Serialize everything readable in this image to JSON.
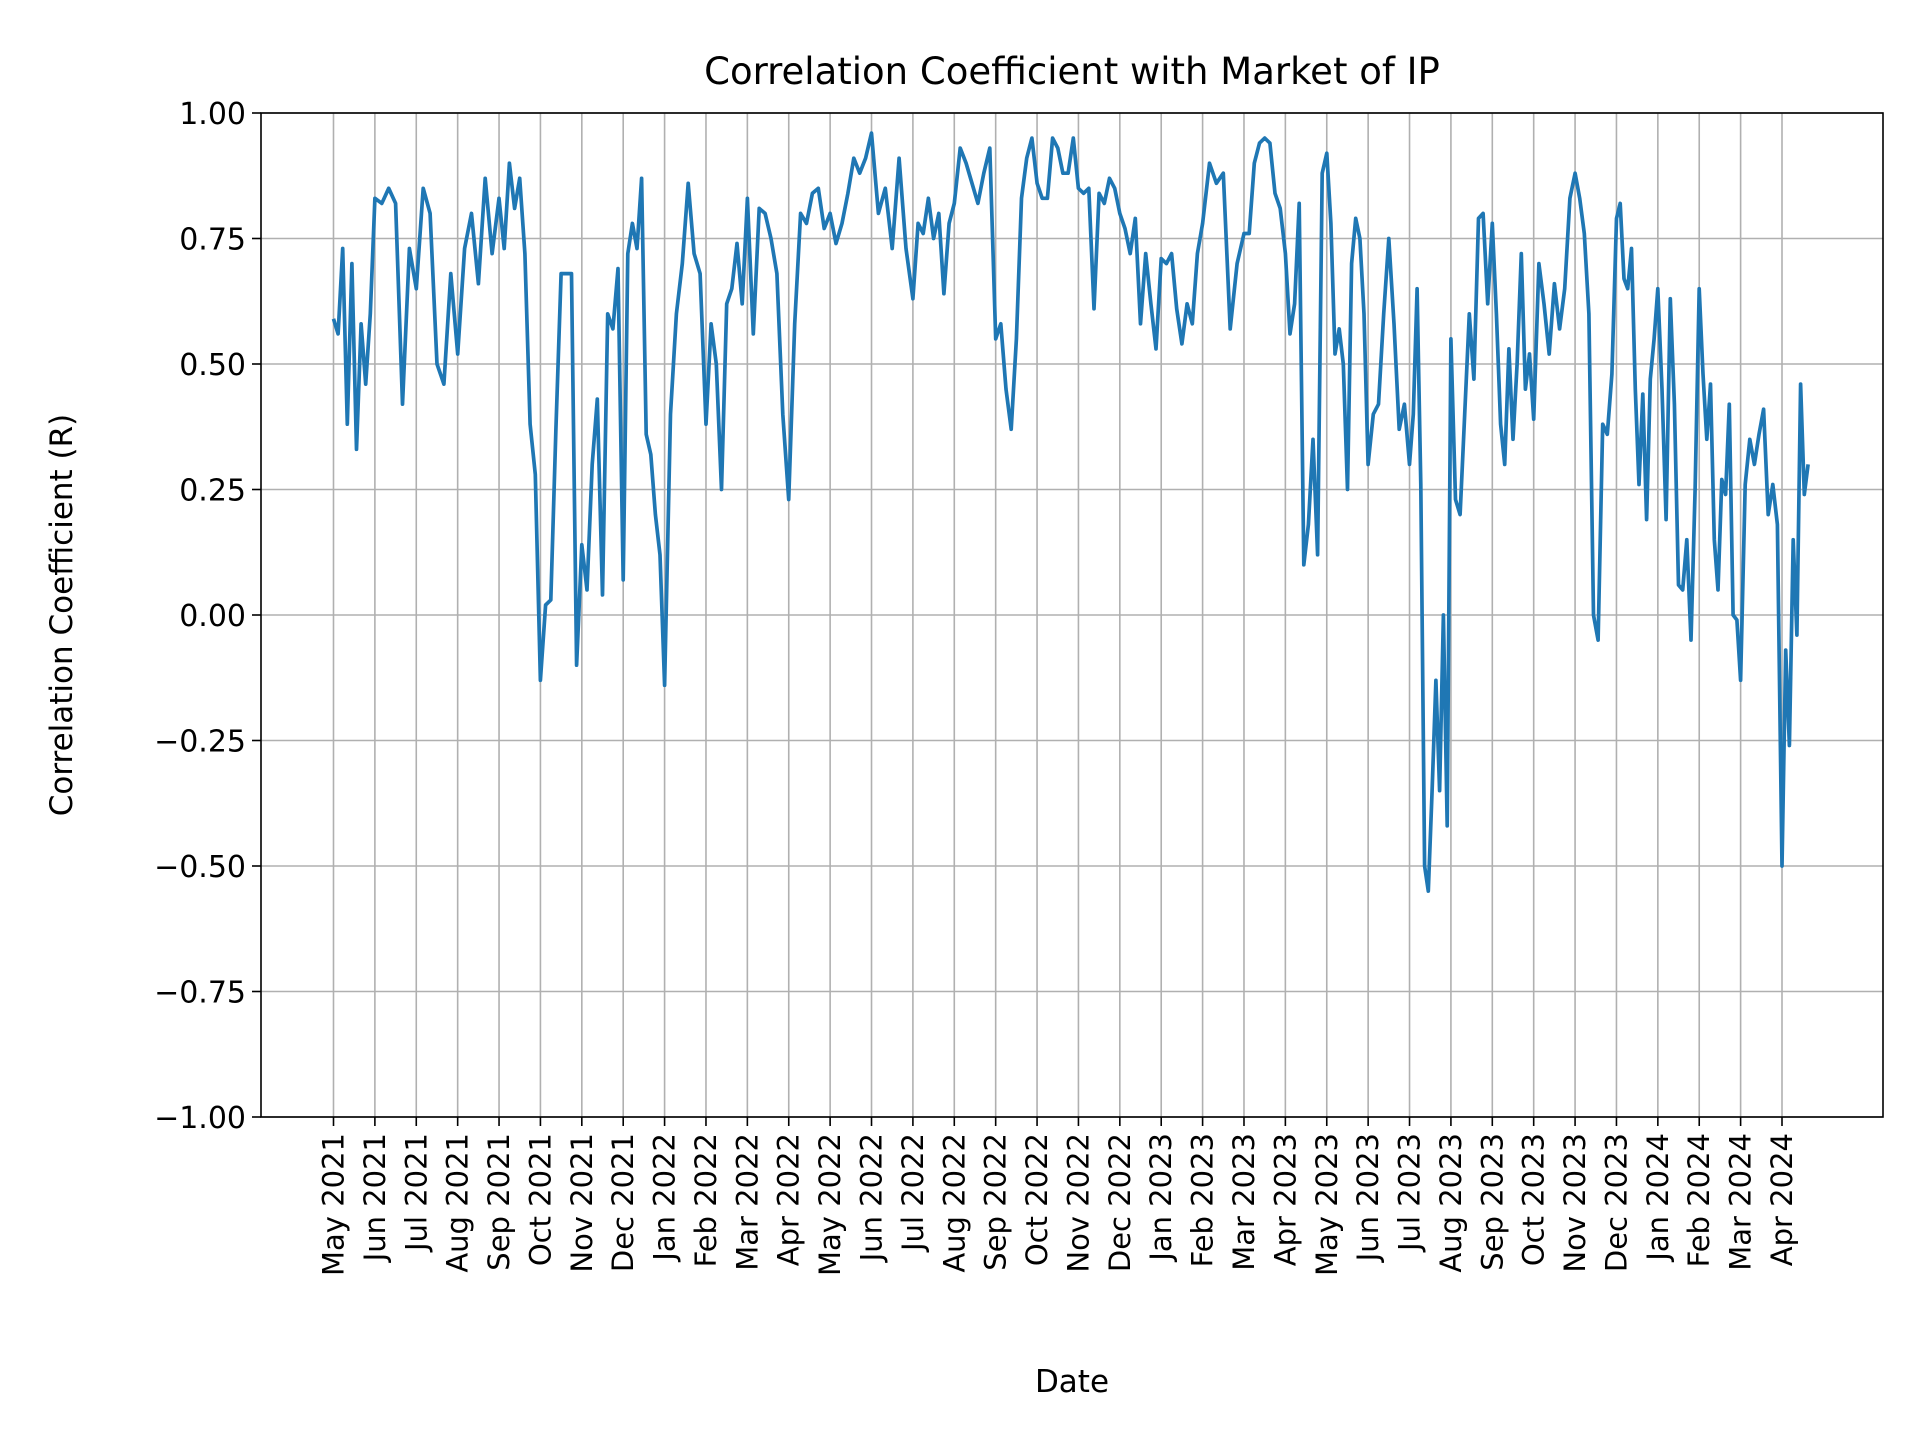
{
  "chart_data": {
    "type": "line",
    "title": "Correlation Coefficient with Market of IP",
    "xlabel": "Date",
    "ylabel": "Correlation Coefficient (R)",
    "ylim": [
      -1.0,
      1.0
    ],
    "yticks": [
      "1.00",
      "0.75",
      "0.50",
      "0.25",
      "0.00",
      "−0.25",
      "−0.50",
      "−0.75",
      "−1.00"
    ],
    "ytick_values": [
      1.0,
      0.75,
      0.5,
      0.25,
      0.0,
      -0.25,
      -0.5,
      -0.75,
      -1.0
    ],
    "grid": true,
    "line_color": "#1f77b4",
    "grid_color": "#b0b0b0",
    "xticks": [
      "May 2021",
      "Jun 2021",
      "Jul 2021",
      "Aug 2021",
      "Sep 2021",
      "Oct 2021",
      "Nov 2021",
      "Dec 2021",
      "Jan 2022",
      "Feb 2022",
      "Mar 2022",
      "Apr 2022",
      "May 2022",
      "Jun 2022",
      "Jul 2022",
      "Aug 2022",
      "Sep 2022",
      "Oct 2022",
      "Nov 2022",
      "Dec 2022",
      "Jan 2023",
      "Feb 2023",
      "Mar 2023",
      "Apr 2023",
      "May 2023",
      "Jun 2023",
      "Jul 2023",
      "Aug 2023",
      "Sep 2023",
      "Oct 2023",
      "Nov 2023",
      "Dec 2023",
      "Jan 2024",
      "Feb 2024",
      "Mar 2024",
      "Apr 2024"
    ],
    "series_by_month": [
      {
        "month": "2021-05",
        "values": [
          0.59,
          0.56,
          0.73,
          0.38,
          0.7,
          0.33,
          0.58,
          0.46,
          0.6
        ]
      },
      {
        "month": "2021-06",
        "values": [
          0.83,
          0.82,
          0.85,
          0.82,
          0.42,
          0.73
        ]
      },
      {
        "month": "2021-07",
        "values": [
          0.65,
          0.85,
          0.8,
          0.5,
          0.46,
          0.68
        ]
      },
      {
        "month": "2021-08",
        "values": [
          0.52,
          0.73,
          0.8,
          0.66,
          0.87,
          0.72
        ]
      },
      {
        "month": "2021-09",
        "values": [
          0.83,
          0.73,
          0.9,
          0.81,
          0.87,
          0.72,
          0.38,
          0.28
        ]
      },
      {
        "month": "2021-10",
        "values": [
          -0.13,
          0.02,
          0.03,
          0.37,
          0.68,
          0.68,
          0.68,
          -0.1
        ]
      },
      {
        "month": "2021-11",
        "values": [
          0.14,
          0.05,
          0.3,
          0.43,
          0.04,
          0.6,
          0.57,
          0.69
        ]
      },
      {
        "month": "2021-12",
        "values": [
          0.07,
          0.72,
          0.78,
          0.73,
          0.87,
          0.36,
          0.32,
          0.2,
          0.12
        ]
      },
      {
        "month": "2022-01",
        "values": [
          -0.14,
          0.4,
          0.6,
          0.7,
          0.86,
          0.72,
          0.68
        ]
      },
      {
        "month": "2022-02",
        "values": [
          0.38,
          0.58,
          0.5,
          0.25,
          0.62,
          0.65,
          0.74,
          0.62
        ]
      },
      {
        "month": "2022-03",
        "values": [
          0.83,
          0.56,
          0.81,
          0.8,
          0.75,
          0.68,
          0.4
        ]
      },
      {
        "month": "2022-04",
        "values": [
          0.23,
          0.58,
          0.8,
          0.78,
          0.84,
          0.85,
          0.77
        ]
      },
      {
        "month": "2022-05",
        "values": [
          0.8,
          0.74,
          0.78,
          0.84,
          0.91,
          0.88,
          0.91
        ]
      },
      {
        "month": "2022-06",
        "values": [
          0.96,
          0.8,
          0.85,
          0.73,
          0.91,
          0.73
        ]
      },
      {
        "month": "2022-07",
        "values": [
          0.63,
          0.78,
          0.76,
          0.83,
          0.75,
          0.8,
          0.64,
          0.78
        ]
      },
      {
        "month": "2022-08",
        "values": [
          0.82,
          0.93,
          0.9,
          0.86,
          0.82,
          0.88,
          0.93
        ]
      },
      {
        "month": "2022-09",
        "values": [
          0.55,
          0.58,
          0.45,
          0.37,
          0.55,
          0.83,
          0.91,
          0.95
        ]
      },
      {
        "month": "2022-10",
        "values": [
          0.86,
          0.83,
          0.83,
          0.95,
          0.93,
          0.88,
          0.88,
          0.95
        ]
      },
      {
        "month": "2022-11",
        "values": [
          0.85,
          0.84,
          0.85,
          0.61,
          0.84,
          0.82,
          0.87,
          0.85
        ]
      },
      {
        "month": "2022-12",
        "values": [
          0.8,
          0.77,
          0.72,
          0.79,
          0.58,
          0.72,
          0.62,
          0.53
        ]
      },
      {
        "month": "2023-01",
        "values": [
          0.71,
          0.7,
          0.72,
          0.61,
          0.54,
          0.62,
          0.58,
          0.72
        ]
      },
      {
        "month": "2023-02",
        "values": [
          0.78,
          0.9,
          0.86,
          0.88,
          0.57,
          0.7
        ]
      },
      {
        "month": "2023-03",
        "values": [
          0.76,
          0.76,
          0.9,
          0.94,
          0.95,
          0.94,
          0.84,
          0.81
        ]
      },
      {
        "month": "2023-04",
        "values": [
          0.72,
          0.56,
          0.62,
          0.82,
          0.1,
          0.18,
          0.35,
          0.12,
          0.88
        ]
      },
      {
        "month": "2023-05",
        "values": [
          0.92,
          0.78,
          0.52,
          0.57,
          0.5,
          0.25,
          0.7,
          0.79,
          0.75,
          0.6
        ]
      },
      {
        "month": "2023-06",
        "values": [
          0.3,
          0.4,
          0.42,
          0.6,
          0.75,
          0.58,
          0.37,
          0.42
        ]
      },
      {
        "month": "2023-07",
        "values": [
          0.3,
          0.4,
          0.65,
          0.26,
          -0.5,
          -0.55,
          -0.35,
          -0.13,
          -0.35,
          0.0,
          -0.42
        ]
      },
      {
        "month": "2023-08",
        "values": [
          0.55,
          0.23,
          0.2,
          0.4,
          0.6,
          0.47,
          0.79,
          0.8,
          0.62
        ]
      },
      {
        "month": "2023-09",
        "values": [
          0.78,
          0.6,
          0.38,
          0.3,
          0.53,
          0.35,
          0.5,
          0.72,
          0.45,
          0.52
        ]
      },
      {
        "month": "2023-10",
        "values": [
          0.39,
          0.7,
          0.62,
          0.52,
          0.66,
          0.57,
          0.65,
          0.83
        ]
      },
      {
        "month": "2023-11",
        "values": [
          0.88,
          0.83,
          0.76,
          0.6,
          0.0,
          -0.05,
          0.38,
          0.36,
          0.48
        ]
      },
      {
        "month": "2023-12",
        "values": [
          0.79,
          0.82,
          0.67,
          0.65,
          0.73,
          0.45,
          0.26,
          0.44,
          0.19,
          0.47,
          0.55
        ]
      },
      {
        "month": "2024-01",
        "values": [
          0.65,
          0.45,
          0.19,
          0.63,
          0.42,
          0.06,
          0.05,
          0.15,
          -0.05,
          0.25
        ]
      },
      {
        "month": "2024-02",
        "values": [
          0.65,
          0.48,
          0.35,
          0.46,
          0.15,
          0.05,
          0.27,
          0.24,
          0.42,
          0.0,
          -0.01
        ]
      },
      {
        "month": "2024-03",
        "values": [
          -0.13,
          0.26,
          0.35,
          0.3,
          0.36,
          0.41,
          0.2,
          0.26,
          0.18
        ]
      },
      {
        "month": "2024-04",
        "values": [
          -0.5,
          -0.07,
          -0.26,
          0.15,
          -0.04,
          0.46,
          0.24,
          0.3
        ]
      }
    ]
  }
}
